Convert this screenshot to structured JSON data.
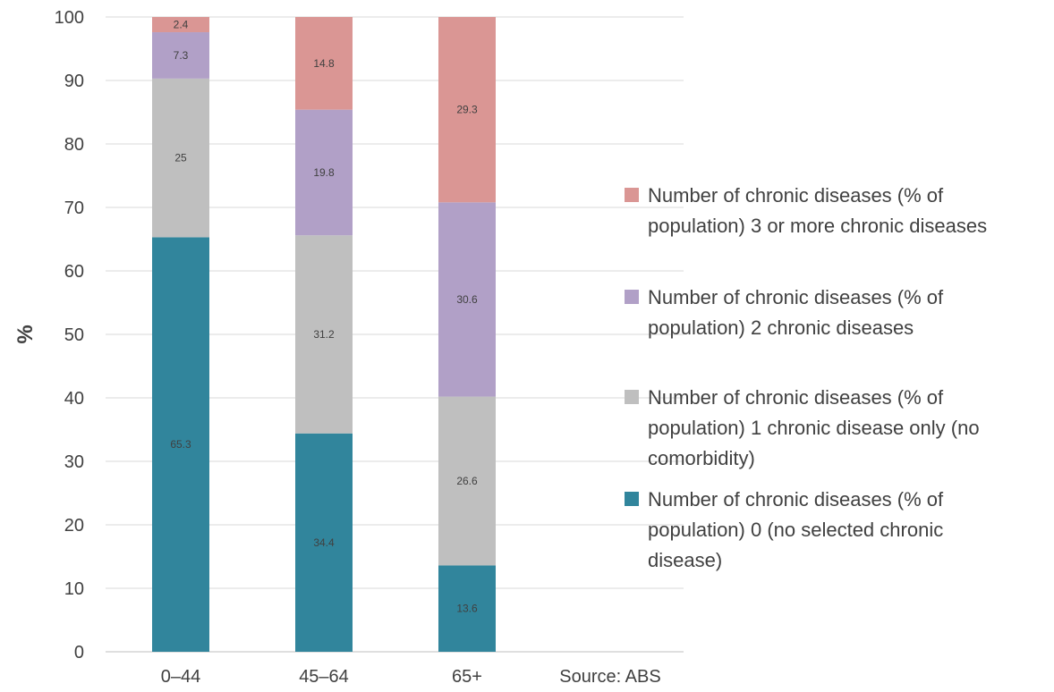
{
  "chart_data": {
    "type": "bar",
    "stacked": true,
    "categories": [
      "0–44",
      "45–64",
      "65+"
    ],
    "ylabel": "%",
    "ylim": [
      0,
      100
    ],
    "yticks": [
      0,
      10,
      20,
      30,
      40,
      50,
      60,
      70,
      80,
      90,
      100
    ],
    "grid": "horizontal",
    "legend_position": "right",
    "legend_order": [
      3,
      2,
      1,
      0
    ],
    "series": [
      {
        "name": "Number of chronic diseases (% of population) 0 (no selected chronic disease)",
        "legend_lines": [
          "Number of chronic diseases (% of",
          "population) 0 (no selected chronic",
          "disease)"
        ],
        "color": "#31859c",
        "values": [
          65.3,
          34.4,
          13.6
        ]
      },
      {
        "name": "Number of chronic diseases (% of population) 1 chronic disease only (no comorbidity)",
        "legend_lines": [
          "Number of chronic diseases (% of",
          "population) 1 chronic disease only (no",
          "comorbidity)"
        ],
        "color": "#bfbfbf",
        "values": [
          25,
          31.2,
          26.6
        ]
      },
      {
        "name": "Number of chronic diseases (% of population) 2 chronic diseases",
        "legend_lines": [
          "Number of chronic diseases (% of",
          "population) 2 chronic diseases"
        ],
        "color": "#b1a0c7",
        "values": [
          7.3,
          19.8,
          30.6
        ]
      },
      {
        "name": "Number of chronic diseases (% of population) 3 or more chronic diseases",
        "legend_lines": [
          "Number of chronic diseases (% of",
          "population) 3 or more chronic diseases"
        ],
        "color": "#da9694",
        "values": [
          2.4,
          14.8,
          29.3
        ]
      }
    ],
    "source_note": "Source: ABS"
  }
}
